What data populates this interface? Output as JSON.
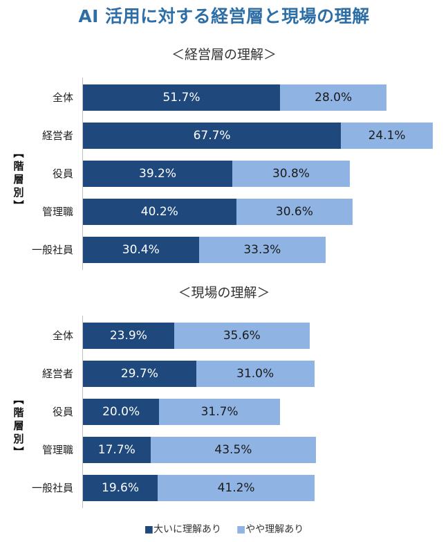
{
  "title": "AI 活用に対する経営層と現場の理解",
  "colors": {
    "series0": "#1f497d",
    "series1": "#8fb4e3",
    "title": "#2e6ea6"
  },
  "legend": [
    "■大いに理解あり",
    "■やや理解あり"
  ],
  "chart_data": [
    {
      "type": "bar",
      "orientation": "horizontal",
      "stacked": true,
      "title": "＜経営層の理解＞",
      "group_label": "【階層別】",
      "categories": [
        "全体",
        "経営者",
        "役員",
        "管理職",
        "一般社員"
      ],
      "series": [
        {
          "name": "大いに理解あり",
          "values": [
            51.7,
            67.7,
            39.2,
            40.2,
            30.4
          ],
          "labels": [
            "51.7%",
            "67.7%",
            "39.2%",
            "40.2%",
            "30.4%"
          ]
        },
        {
          "name": "やや理解あり",
          "values": [
            28.0,
            24.1,
            30.8,
            30.6,
            33.3
          ],
          "labels": [
            "28.0%",
            "24.1%",
            "30.8%",
            "30.6%",
            "33.3%"
          ]
        }
      ],
      "xlim": [
        0,
        100
      ]
    },
    {
      "type": "bar",
      "orientation": "horizontal",
      "stacked": true,
      "title": "＜現場の理解＞",
      "group_label": "【階層別】",
      "categories": [
        "全体",
        "経営者",
        "役員",
        "管理職",
        "一般社員"
      ],
      "series": [
        {
          "name": "大いに理解あり",
          "values": [
            23.9,
            29.7,
            20.0,
            17.7,
            19.6
          ],
          "labels": [
            "23.9%",
            "29.7%",
            "20.0%",
            "17.7%",
            "19.6%"
          ]
        },
        {
          "name": "やや理解あり",
          "values": [
            35.6,
            31.0,
            31.7,
            43.5,
            41.2
          ],
          "labels": [
            "35.6%",
            "31.0%",
            "31.7%",
            "43.5%",
            "41.2%"
          ]
        }
      ],
      "xlim": [
        0,
        100
      ]
    }
  ]
}
